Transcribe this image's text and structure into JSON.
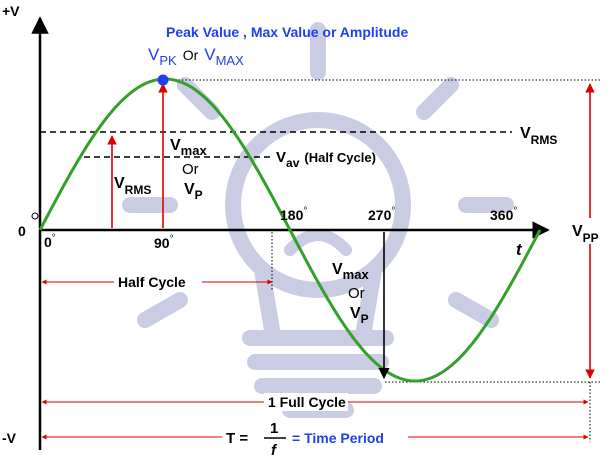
{
  "axis": {
    "y_top": "+V",
    "y_bottom": "-V",
    "origin": "0",
    "degree": "°",
    "x_axis": "t"
  },
  "angles": [
    "0",
    "90",
    "180",
    "270",
    "360"
  ],
  "peak": {
    "title": "Peak Value , Max Value or Amplitude",
    "v": "V",
    "pk_sub": "PK",
    "or": "Or",
    "max_sub": "MAX"
  },
  "rms": {
    "v": "V",
    "sub": "RMS"
  },
  "vmax": {
    "v": "V",
    "sub": "max",
    "or": "Or",
    "p_sub": "P"
  },
  "vav": {
    "v": "V",
    "sub": "av",
    "suffix": "(Half Cycle)"
  },
  "vpp": {
    "v": "V",
    "sub": "PP"
  },
  "half_cycle": "Half Cycle",
  "full_cycle": "1 Full Cycle",
  "period": {
    "t_eq": "T =",
    "numerator": "1",
    "denominator": "f",
    "label": "= Time Period"
  },
  "colors": {
    "wave": "#33a02c",
    "arrow_red": "#e00000",
    "text_blue": "#1f3ff0",
    "peak_dot": "#1f3ff0",
    "watermark": "#c9cce3"
  },
  "icons": [
    "lightbulb-watermark-icon"
  ]
}
